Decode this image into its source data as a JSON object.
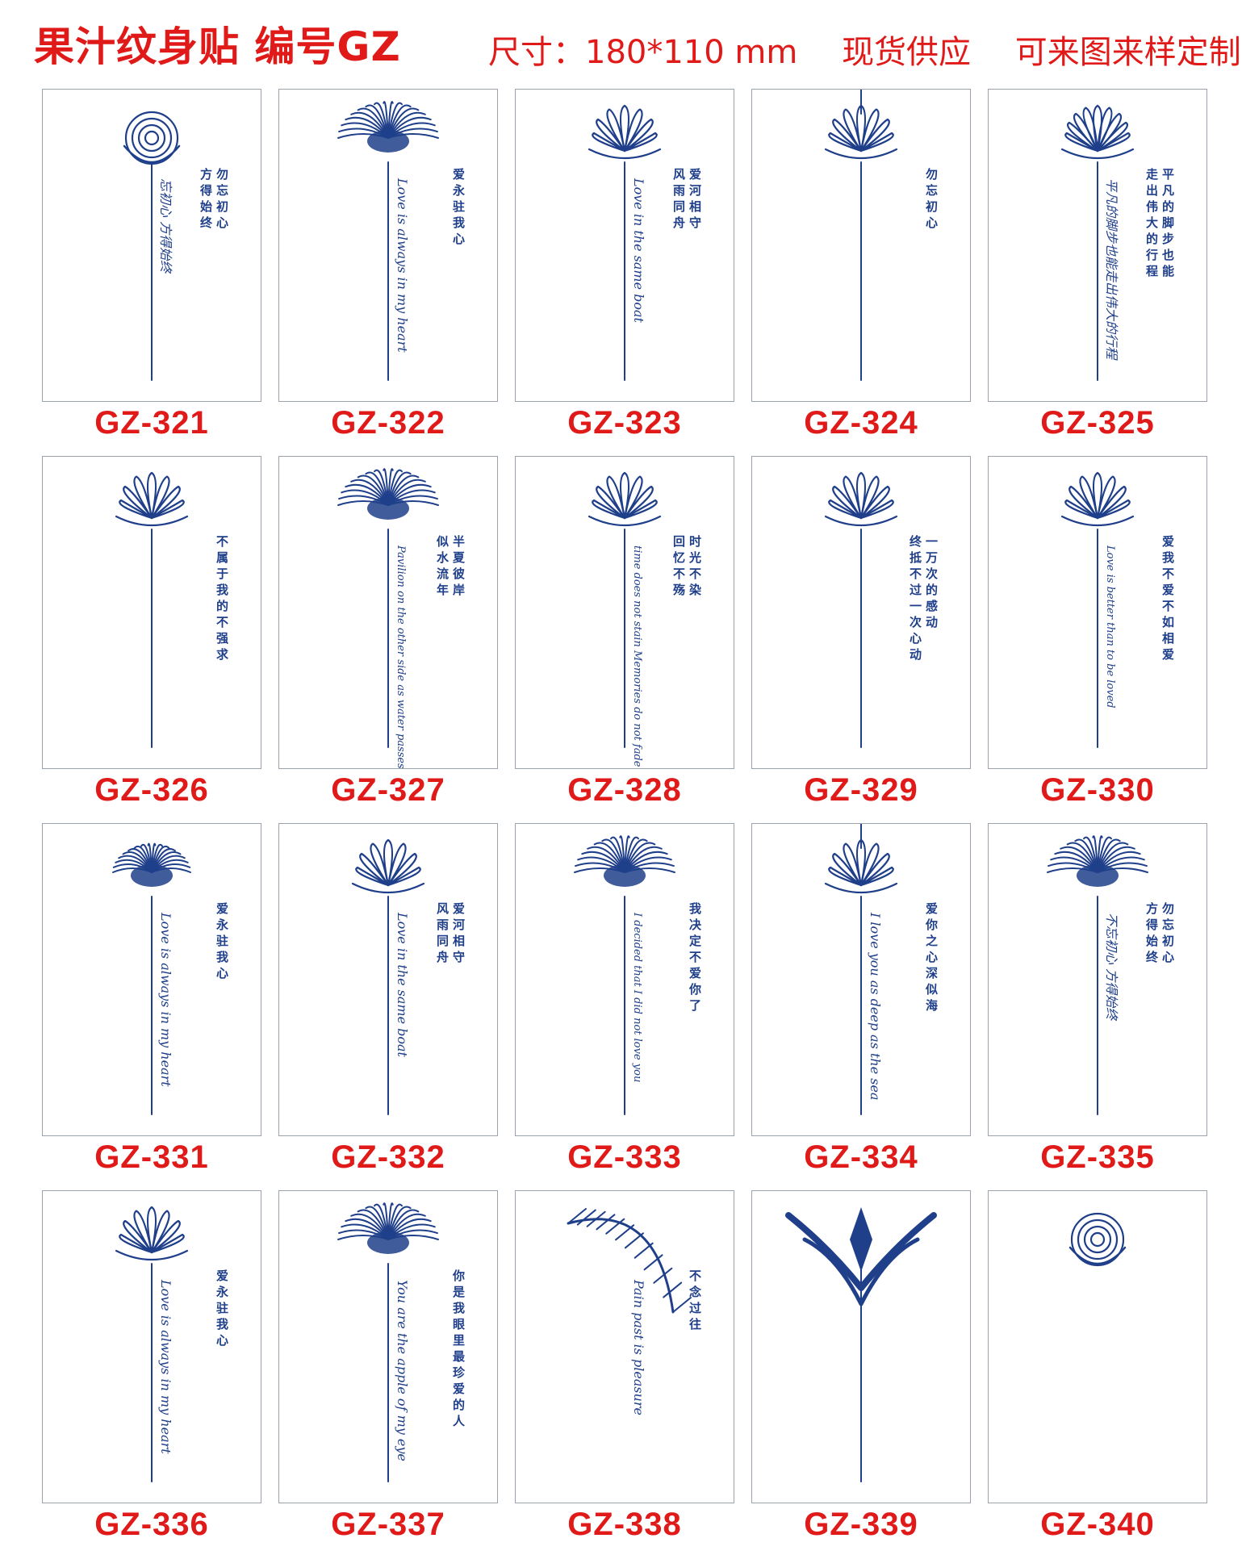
{
  "header": {
    "title": "果汁纹身贴 编号GZ",
    "size": "尺寸：180*110 mm",
    "stock": "现货供应",
    "custom": "可来图来样定制"
  },
  "colors": {
    "accent": "#e01919",
    "ink": "#1f3f8a",
    "frame": "#9aa3ad"
  },
  "items": [
    {
      "code": "GZ-321",
      "flower": "rose",
      "script": "忘初心 方得始终",
      "side": "勿忘初心 方得始终"
    },
    {
      "code": "GZ-322",
      "flower": "spider-lily",
      "script": "Love is always in my heart",
      "side": "爱永驻我心"
    },
    {
      "code": "GZ-323",
      "flower": "lotus",
      "script": "Love in the same boat",
      "side": "爱河相守 风雨同舟"
    },
    {
      "code": "GZ-324",
      "flower": "lotus-ornament",
      "script": "",
      "side": "勿忘初心"
    },
    {
      "code": "GZ-325",
      "flower": "peony",
      "script": "平凡的脚步也能走出伟大的行程",
      "side": "平凡的脚步也能 走出伟大的行程"
    },
    {
      "code": "GZ-326",
      "flower": "lotus",
      "script": "",
      "side": "不属于我的不强求"
    },
    {
      "code": "GZ-327",
      "flower": "spider-lily",
      "script": "Pavilion on the other side as water passes",
      "side": "半夏彼岸 似水流年"
    },
    {
      "code": "GZ-328",
      "flower": "lotus",
      "script": "time does not stain Memories do not fade",
      "side": "时光不染 回忆不殇"
    },
    {
      "code": "GZ-329",
      "flower": "lotus",
      "script": "",
      "side": "一万次的感动 终抵不过一次心动"
    },
    {
      "code": "GZ-330",
      "flower": "lotus",
      "script": "Love is better than to be loved",
      "side": "爱我不爱不如相爱"
    },
    {
      "code": "GZ-331",
      "flower": "chrysanthemum",
      "script": "Love is always in my heart",
      "side": "爱永驻我心"
    },
    {
      "code": "GZ-332",
      "flower": "lotus",
      "script": "Love in the same boat",
      "side": "爱河相守 风雨同舟"
    },
    {
      "code": "GZ-333",
      "flower": "spider-lily",
      "script": "I decided that I did not love you",
      "side": "我决定不爱你了"
    },
    {
      "code": "GZ-334",
      "flower": "lotus-ornament",
      "script": "I love you as deep as the sea",
      "side": "爱你之心深似海"
    },
    {
      "code": "GZ-335",
      "flower": "spider-lily",
      "script": "不忘初心 方得始终",
      "side": "勿忘初心 方得始终"
    },
    {
      "code": "GZ-336",
      "flower": "lotus",
      "script": "Love is always in my heart",
      "side": "爱永驻我心"
    },
    {
      "code": "GZ-337",
      "flower": "spider-lily",
      "script": "You are the apple of my eye",
      "side": "你是我眼里最珍爱的人"
    },
    {
      "code": "GZ-338",
      "flower": "feather",
      "script": "Pain past is pleasure",
      "side": "不念过往"
    },
    {
      "code": "GZ-339",
      "flower": "tribal",
      "script": "",
      "side": ""
    },
    {
      "code": "GZ-340",
      "flower": "rose-script",
      "script": "",
      "side": ""
    }
  ]
}
